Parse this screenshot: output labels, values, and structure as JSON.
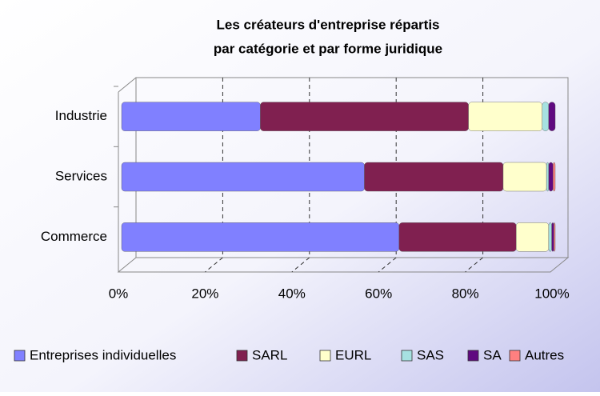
{
  "chart_data": {
    "type": "bar",
    "orientation": "horizontal",
    "stacked": "percent",
    "title": "Les créateurs d'entreprise répartis",
    "subtitle": "par catégorie et par forme juridique",
    "categories": [
      "Industrie",
      "Services",
      "Commerce"
    ],
    "series": [
      {
        "name": "Entreprises individuelles",
        "color": "#8080ff",
        "values": [
          32,
          56,
          64
        ]
      },
      {
        "name": "SARL",
        "color": "#802050",
        "values": [
          48,
          32,
          27
        ]
      },
      {
        "name": "EURL",
        "color": "#ffffcc",
        "values": [
          17,
          10,
          7.5
        ]
      },
      {
        "name": "SAS",
        "color": "#a6e1e1",
        "values": [
          1.5,
          0.5,
          0.7
        ]
      },
      {
        "name": "SA",
        "color": "#600a80",
        "values": [
          1.5,
          1,
          0.5
        ]
      },
      {
        "name": "Autres",
        "color": "#ff8080",
        "values": [
          0,
          0.5,
          0.3
        ]
      }
    ],
    "xlim": [
      0,
      100
    ],
    "xticks": [
      {
        "value": 0,
        "label": "0%"
      },
      {
        "value": 20,
        "label": "20%"
      },
      {
        "value": 40,
        "label": "40%"
      },
      {
        "value": 60,
        "label": "60%"
      },
      {
        "value": 80,
        "label": "80%"
      },
      {
        "value": 100,
        "label": "100%"
      }
    ],
    "grid": true,
    "legend": "bottom"
  }
}
